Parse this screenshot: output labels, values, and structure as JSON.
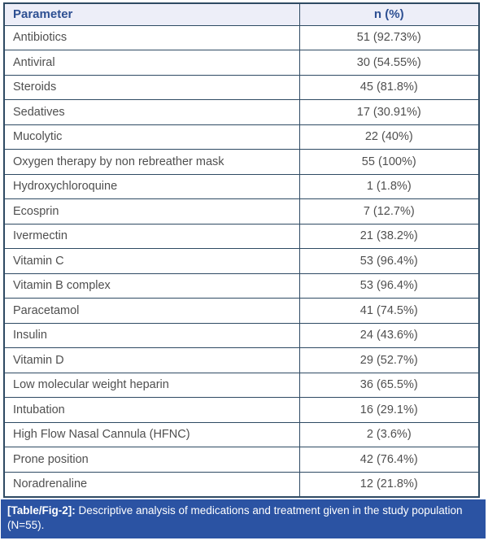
{
  "table": {
    "columns": [
      "Parameter",
      "n (%)"
    ],
    "rows": [
      {
        "parameter": "Antibiotics",
        "value": "51 (92.73%)"
      },
      {
        "parameter": "Antiviral",
        "value": "30 (54.55%)"
      },
      {
        "parameter": "Steroids",
        "value": "45 (81.8%)"
      },
      {
        "parameter": "Sedatives",
        "value": "17 (30.91%)"
      },
      {
        "parameter": "Mucolytic",
        "value": "22 (40%)"
      },
      {
        "parameter": "Oxygen therapy by non rebreather mask",
        "value": "55 (100%)"
      },
      {
        "parameter": "Hydroxychloroquine",
        "value": "1 (1.8%)"
      },
      {
        "parameter": "Ecosprin",
        "value": "7 (12.7%)"
      },
      {
        "parameter": "Ivermectin",
        "value": "21 (38.2%)"
      },
      {
        "parameter": "Vitamin C",
        "value": "53 (96.4%)"
      },
      {
        "parameter": "Vitamin B complex",
        "value": "53 (96.4%)"
      },
      {
        "parameter": "Paracetamol",
        "value": "41 (74.5%)"
      },
      {
        "parameter": "Insulin",
        "value": "24 (43.6%)"
      },
      {
        "parameter": "Vitamin D",
        "value": "29 (52.7%)"
      },
      {
        "parameter": "Low molecular weight heparin",
        "value": "36 (65.5%)"
      },
      {
        "parameter": "Intubation",
        "value": "16 (29.1%)"
      },
      {
        "parameter": "High Flow Nasal Cannula (HFNC)",
        "value": "2 (3.6%)"
      },
      {
        "parameter": "Prone position",
        "value": "42 (76.4%)"
      },
      {
        "parameter": "Noradrenaline",
        "value": "12 (21.8%)"
      }
    ]
  },
  "caption": {
    "label": "[Table/Fig-2]:",
    "text": " Descriptive analysis of medications and treatment given in the study population (N=55)."
  },
  "colors": {
    "header_bg": "#edeef8",
    "header_text": "#2d4f92",
    "grid_border": "#2e4a63",
    "body_text": "#4f4f4f",
    "caption_bg": "#2b53a3",
    "caption_text": "#ffffff"
  }
}
